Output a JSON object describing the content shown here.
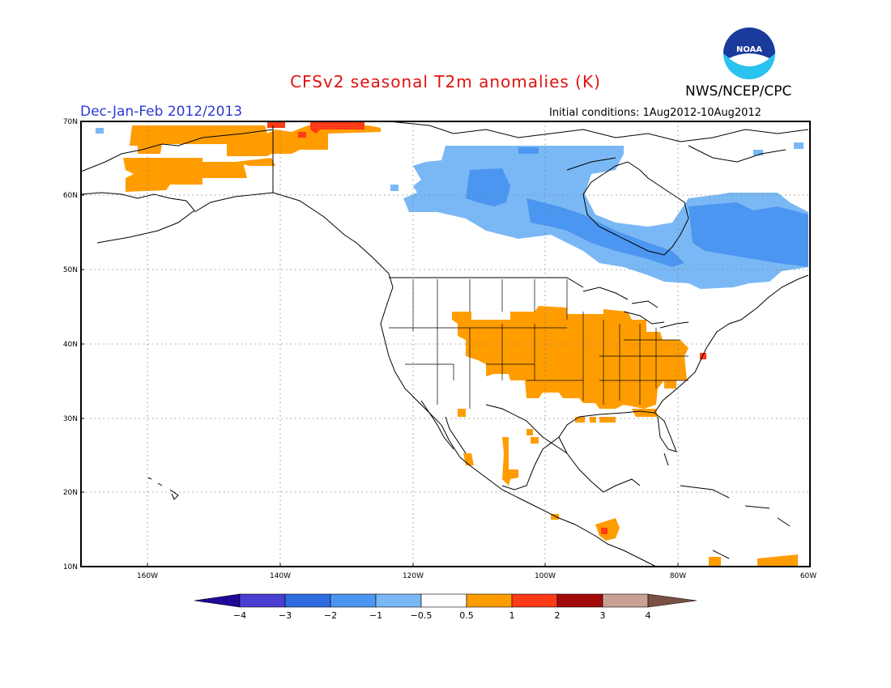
{
  "header": {
    "title": "CFSv2 seasonal T2m anomalies (K)",
    "org": "NWS/NCEP/CPC",
    "season": "Dec-Jan-Feb 2012/2013",
    "initial_conditions": "Initial conditions: 1Aug2012-10Aug2012",
    "logo_text": "NOAA"
  },
  "map": {
    "lat_labels": [
      "70N",
      "60N",
      "50N",
      "40N",
      "30N",
      "20N",
      "10N"
    ],
    "lon_labels": [
      "160W",
      "140W",
      "120W",
      "100W",
      "80W",
      "60W"
    ],
    "extent": {
      "lon": [
        -172,
        -60
      ],
      "lat": [
        10,
        70
      ]
    }
  },
  "colorbar": {
    "labels": [
      "−4",
      "−3",
      "−2",
      "−1",
      "−0.5",
      "0.5",
      "1",
      "2",
      "3",
      "4"
    ],
    "colors": [
      "#1e0a96",
      "#4a3fd0",
      "#2f6ce0",
      "#4b96f0",
      "#7ab8f5",
      "#ffffff",
      "#ff9d00",
      "#ff3a16",
      "#a30a0a",
      "#c9a092",
      "#7a5043"
    ]
  }
}
